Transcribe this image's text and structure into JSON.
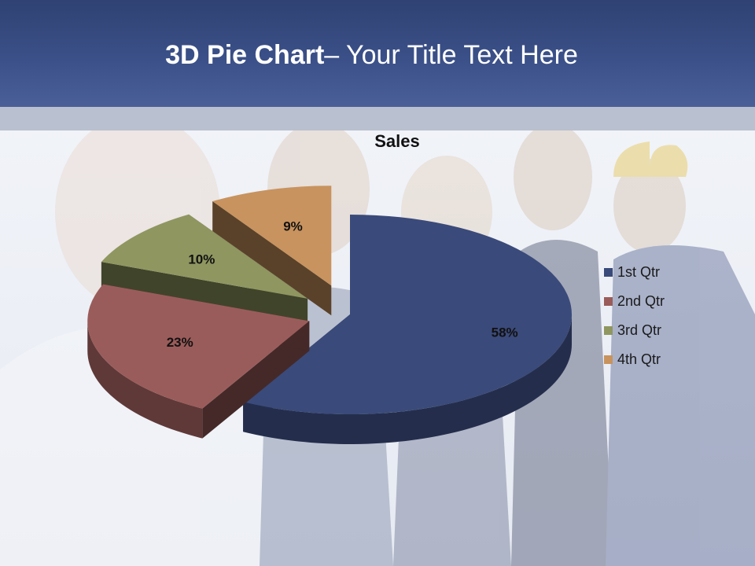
{
  "slide": {
    "title_bold": "3D Pie Chart",
    "title_rest": "– Your Title Text Here"
  },
  "colors": {
    "header": "#3b5088",
    "band": "#b9c0cf"
  },
  "chart_data": {
    "type": "pie",
    "style": "3d-exploded",
    "title": "Sales",
    "categories": [
      "1st Qtr",
      "2nd Qtr",
      "3rd Qtr",
      "4th Qtr"
    ],
    "values": [
      58,
      23,
      10,
      9
    ],
    "labels": [
      "58%",
      "23%",
      "10%",
      "9%"
    ],
    "colors": [
      "#3a4a7a",
      "#9a5c5a",
      "#8f9660",
      "#c8935e"
    ],
    "legend_position": "right"
  }
}
